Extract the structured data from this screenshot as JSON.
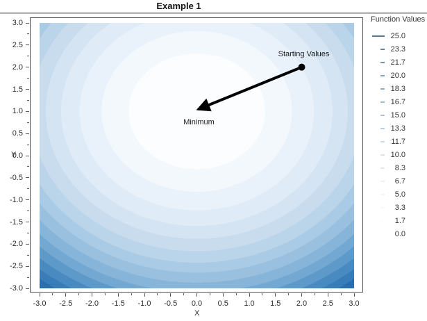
{
  "title": "Example 1",
  "chart_data": {
    "type": "heatmap",
    "subtype": "filled-contour",
    "title": "Example 1",
    "xlabel": "X",
    "ylabel": "Y",
    "xlim": [
      -3.1,
      3.1
    ],
    "ylim": [
      -3.1,
      3.1
    ],
    "data_extent": [
      -3,
      3
    ],
    "function": "f(x,y) = x^2 + (y-1)^2",
    "minimum_point": [
      0,
      1
    ],
    "x_ticks": [
      "-3.0",
      "-2.5",
      "-2.0",
      "-1.5",
      "-1.0",
      "-0.5",
      "0.0",
      "0.5",
      "1.0",
      "1.5",
      "2.0",
      "2.5",
      "3.0"
    ],
    "y_ticks": [
      "3.0",
      "2.5",
      "2.0",
      "1.5",
      "1.0",
      "0.5",
      "0.0",
      "-0.5",
      "-1.0",
      "-1.5",
      "-2.0",
      "-2.5",
      "-3.0"
    ],
    "levels": [
      0.0,
      1.7,
      3.3,
      5.0,
      6.7,
      8.3,
      10.0,
      11.7,
      13.3,
      15.0,
      16.7,
      18.3,
      20.0,
      21.7,
      23.3,
      25.0
    ],
    "band_colors": [
      "#fcfdff",
      "#f3f8fc",
      "#e9f2fa",
      "#dfebf6",
      "#d4e4f2",
      "#c8dcee",
      "#bad4ea",
      "#aacbe5",
      "#99c1df",
      "#86b5d9",
      "#72a8d2",
      "#5d9aca",
      "#498bc1",
      "#387cb8",
      "#2a6eae",
      "#2061a5"
    ],
    "grid": false,
    "legend": {
      "title": "Function Values",
      "position": "right",
      "items": [
        {
          "label": "25.0",
          "color": "#54788f",
          "swatch": "long-line"
        },
        {
          "label": "23.3",
          "color": "#6488a3",
          "swatch": "dash"
        },
        {
          "label": "21.7",
          "color": "#7595ad",
          "swatch": "dash"
        },
        {
          "label": "20.0",
          "color": "#84a2b8",
          "swatch": "dash"
        },
        {
          "label": "18.3",
          "color": "#93aec3",
          "swatch": "dash"
        },
        {
          "label": "16.7",
          "color": "#a2bacd",
          "swatch": "dash"
        },
        {
          "label": "15.0",
          "color": "#b0c5d7",
          "swatch": "dash"
        },
        {
          "label": "13.3",
          "color": "#bed0e0",
          "swatch": "dash"
        },
        {
          "label": "11.7",
          "color": "#cbdae8",
          "swatch": "dash"
        },
        {
          "label": "10.0",
          "color": "#d7e3ee",
          "swatch": "dash"
        },
        {
          "label": "8.3",
          "color": "#e1eaf3",
          "swatch": "dash"
        },
        {
          "label": "6.7",
          "color": "#eaf0f7",
          "swatch": "dash"
        },
        {
          "label": "5.0",
          "color": "#f1f5fa",
          "swatch": "dash"
        },
        {
          "label": "3.3",
          "color": "#f6f9fc",
          "swatch": "dash"
        },
        {
          "label": "1.7",
          "color": "#fafcfe",
          "swatch": "dash"
        },
        {
          "label": "0.0",
          "color": "#fdfeff",
          "swatch": "dash"
        }
      ]
    },
    "annotations": [
      {
        "text": "Starting Values",
        "x": 2,
        "y": 2,
        "placement": "above"
      },
      {
        "text": "Minimum",
        "x": 0,
        "y": 1,
        "placement": "below"
      }
    ],
    "arrow": {
      "from": [
        2,
        2
      ],
      "to": [
        0,
        1
      ],
      "color": "#000000"
    }
  }
}
